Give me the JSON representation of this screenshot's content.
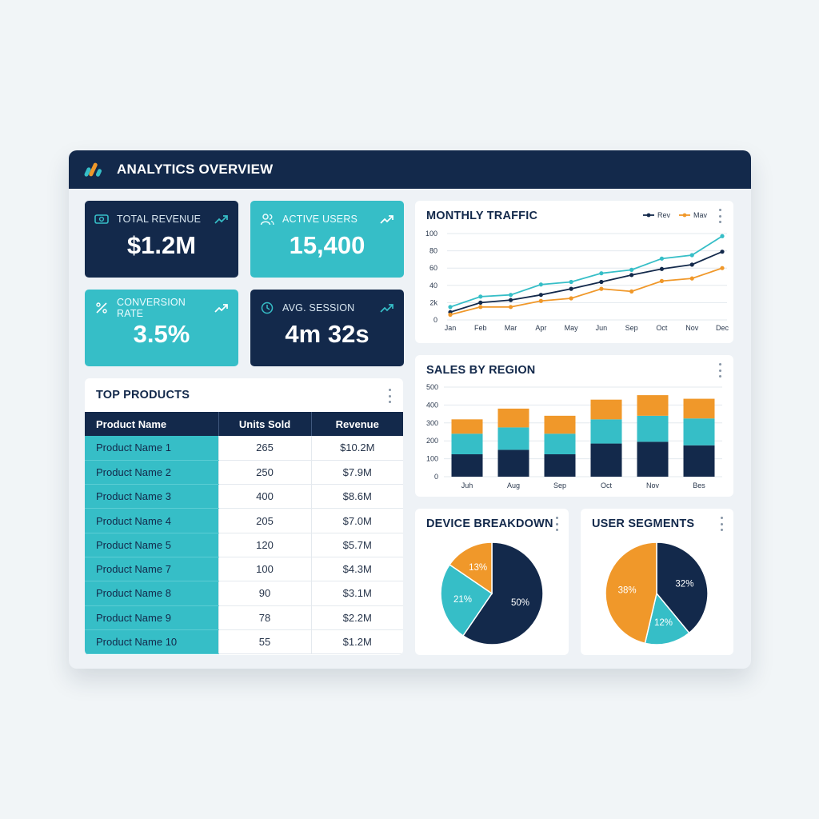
{
  "app": {
    "title": "ANALYTICS OVERVIEW"
  },
  "kpis": [
    {
      "label": "TOTAL REVENUE",
      "value": "$1.2M",
      "icon": "money-icon"
    },
    {
      "label": "ACTIVE USERS",
      "value": "15,400",
      "icon": "users-icon"
    },
    {
      "label": "CONVERSION RATE",
      "value": "3.5%",
      "icon": "percent-icon"
    },
    {
      "label": "AVG. SESSION",
      "value": "4m 32s",
      "icon": "clock-icon"
    }
  ],
  "top_products": {
    "title": "TOP PRODUCTS",
    "columns": [
      "Product Name",
      "Units Sold",
      "Revenue"
    ],
    "rows": [
      [
        "Product Name 1",
        "265",
        "$10.2M"
      ],
      [
        "Product Name 2",
        "250",
        "$7.9M"
      ],
      [
        "Product Name 3",
        "400",
        "$8.6M"
      ],
      [
        "Product Name 4",
        "205",
        "$7.0M"
      ],
      [
        "Product Name 5",
        "120",
        "$5.7M"
      ],
      [
        "Product Name 7",
        "100",
        "$4.3M"
      ],
      [
        "Product Name 8",
        "90",
        "$3.1M"
      ],
      [
        "Product Name 9",
        "78",
        "$2.2M"
      ],
      [
        "Product Name 10",
        "55",
        "$1.2M"
      ]
    ]
  },
  "colors": {
    "navy": "#13294b",
    "teal": "#36bec7",
    "orange": "#f0982a",
    "grid": "#e3e8ee",
    "tick": "#2c3a4f"
  },
  "chart_data": [
    {
      "type": "line",
      "title": "MONTHLY TRAFFIC",
      "x": [
        "Jan",
        "Feb",
        "Mar",
        "Apr",
        "May",
        "Jun",
        "Sep",
        "Oct",
        "Nov",
        "Dec"
      ],
      "ytick_labels": [
        "0",
        "2k",
        "40",
        "60",
        "80",
        "100"
      ],
      "ylim": [
        0,
        100
      ],
      "grid": true,
      "legend_position": "top-right",
      "series": [
        {
          "name": "",
          "color": "#36bec7",
          "values": [
            15,
            27,
            29,
            41,
            44,
            54,
            58,
            71,
            75,
            97
          ]
        },
        {
          "name": "Rev",
          "color": "#13294b",
          "values": [
            9,
            20,
            23,
            29,
            36,
            44,
            52,
            59,
            64,
            79
          ]
        },
        {
          "name": "Mav",
          "color": "#f0982a",
          "values": [
            6,
            15,
            15,
            22,
            25,
            36,
            33,
            45,
            48,
            60
          ]
        }
      ]
    },
    {
      "type": "bar",
      "stacked": true,
      "title": "SALES BY REGION",
      "categories": [
        "Juh",
        "Aug",
        "Sep",
        "Oct",
        "Nov",
        "Bes"
      ],
      "ylim": [
        0,
        500
      ],
      "yticks": [
        0,
        100,
        200,
        300,
        400,
        500
      ],
      "grid": true,
      "series": [
        {
          "name": "",
          "color": "#13294b",
          "values": [
            125,
            150,
            125,
            185,
            195,
            175
          ]
        },
        {
          "name": "",
          "color": "#36bec7",
          "values": [
            115,
            125,
            115,
            135,
            145,
            150
          ]
        },
        {
          "name": "",
          "color": "#f0982a",
          "values": [
            80,
            105,
            100,
            110,
            115,
            110
          ]
        }
      ]
    },
    {
      "type": "pie",
      "title": "DEVICE BREAKDOWN",
      "slices": [
        {
          "label": "50%",
          "value": 50,
          "color": "#13294b"
        },
        {
          "label": "21%",
          "value": 21,
          "color": "#36bec7"
        },
        {
          "label": "13%",
          "value": 13,
          "color": "#f0982a"
        }
      ]
    },
    {
      "type": "pie",
      "title": "USER SEGMENTS",
      "slices": [
        {
          "label": "32%",
          "value": 32,
          "color": "#13294b"
        },
        {
          "label": "12%",
          "value": 12,
          "color": "#36bec7"
        },
        {
          "label": "38%",
          "value": 38,
          "color": "#f0982a"
        }
      ]
    }
  ]
}
